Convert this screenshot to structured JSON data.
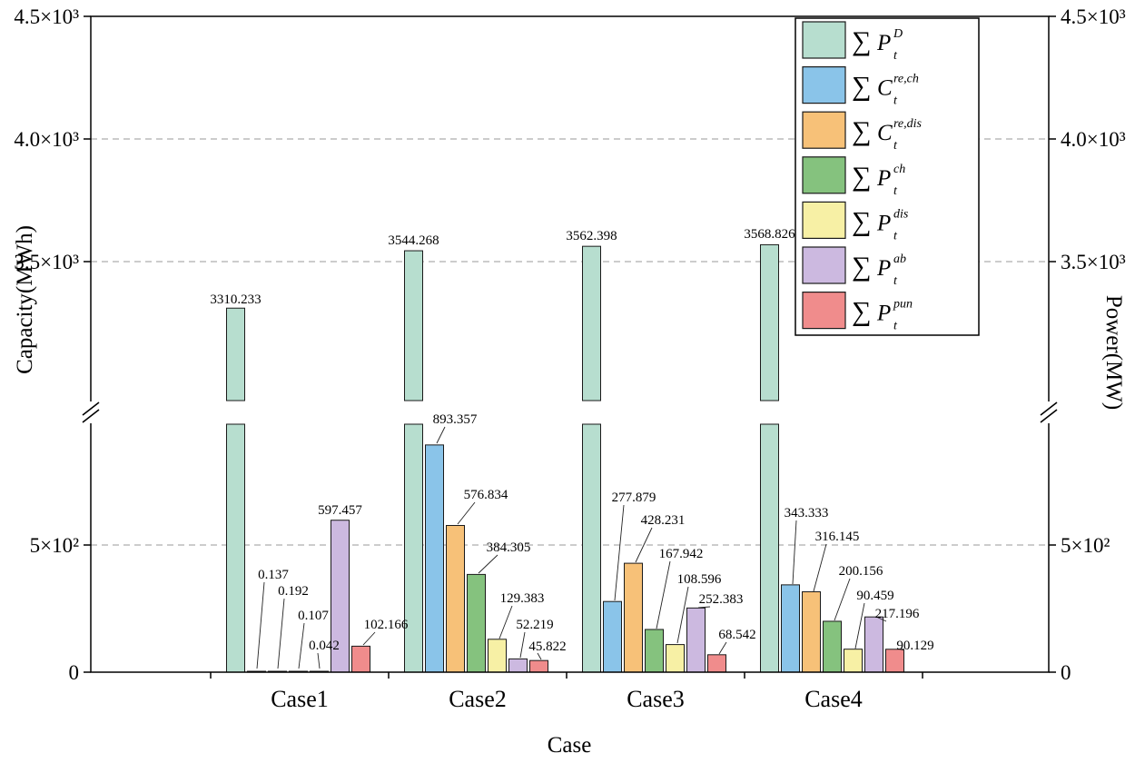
{
  "chart_data": {
    "type": "bar",
    "title": "",
    "xlabel": "Case",
    "ylabel_left": "Capacity(MWh)",
    "ylabel_right": "Power(MW)",
    "categories": [
      "Case1",
      "Case2",
      "Case3",
      "Case4"
    ],
    "axis": {
      "broken_axis": true,
      "grid": "dashed-horizontal",
      "ticks_lower": [
        {
          "value": 0,
          "label": "0"
        },
        {
          "value": 500,
          "label": "5×10²"
        }
      ],
      "ticks_upper": [
        {
          "value": 3500,
          "label": "3.5×10³"
        },
        {
          "value": 4000,
          "label": "4.0×10³"
        },
        {
          "value": 4500,
          "label": "4.5×10³"
        }
      ]
    },
    "series": [
      {
        "name": "∑P_t^D",
        "legend": {
          "sigma": "∑",
          "base": "P",
          "sub": "t",
          "sup": "D"
        },
        "color": "#b7decf",
        "values": [
          3310.233,
          3544.268,
          3562.398,
          3568.826
        ]
      },
      {
        "name": "∑C_t^re,ch",
        "legend": {
          "sigma": "∑",
          "base": "C",
          "sub": "t",
          "sup": "re,ch"
        },
        "color": "#8ac4e9",
        "values": [
          0.137,
          893.357,
          277.879,
          343.333
        ]
      },
      {
        "name": "∑C_t^re,dis",
        "legend": {
          "sigma": "∑",
          "base": "C",
          "sub": "t",
          "sup": "re,dis"
        },
        "color": "#f7c178",
        "values": [
          0.192,
          576.834,
          428.231,
          316.145
        ]
      },
      {
        "name": "∑P_t^ch",
        "legend": {
          "sigma": "∑",
          "base": "P",
          "sub": "t",
          "sup": "ch"
        },
        "color": "#85c27e",
        "values": [
          0.107,
          384.305,
          167.942,
          200.156
        ]
      },
      {
        "name": "∑P_t^dis",
        "legend": {
          "sigma": "∑",
          "base": "P",
          "sub": "t",
          "sup": "dis"
        },
        "color": "#f7f0a5",
        "values": [
          0.042,
          129.383,
          108.596,
          90.459
        ]
      },
      {
        "name": "∑P_t^ab",
        "legend": {
          "sigma": "∑",
          "base": "P",
          "sub": "t",
          "sup": "ab"
        },
        "color": "#ccb9e0",
        "values": [
          597.457,
          52.219,
          252.383,
          217.196
        ]
      },
      {
        "name": "∑P_t^pun",
        "legend": {
          "sigma": "∑",
          "base": "P",
          "sub": "t",
          "sup": "pun"
        },
        "color": "#f08c8c",
        "values": [
          102.166,
          45.822,
          68.542,
          90.129
        ]
      }
    ],
    "colors": {
      "bar_border": "#1a1a1a",
      "grid": "#9a9a9a",
      "axis": "#000000"
    }
  }
}
